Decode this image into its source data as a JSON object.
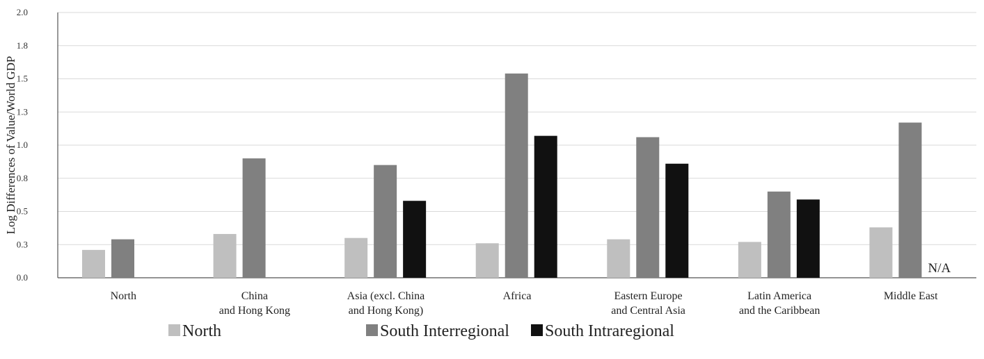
{
  "chart_data": {
    "type": "bar",
    "title": "",
    "xlabel": "",
    "ylabel": "Log Differences of Value/World GDP",
    "ylim": [
      0,
      1.8
    ],
    "yticks": [
      {
        "value": 0.0,
        "label": "0.0"
      },
      {
        "value": 0.25,
        "label": "0.3"
      },
      {
        "value": 0.5,
        "label": "0.5"
      },
      {
        "value": 0.75,
        "label": "0.8"
      },
      {
        "value": 1.0,
        "label": "1.0"
      },
      {
        "value": 1.25,
        "label": "1.3"
      },
      {
        "value": 1.5,
        "label": "1.5"
      },
      {
        "value": 1.75,
        "label": "1.8"
      },
      {
        "value": 2.0,
        "label": "2.0"
      }
    ],
    "grid": true,
    "legend_position": "bottom",
    "categories": [
      [
        "North"
      ],
      [
        "China",
        "and Hong Kong"
      ],
      [
        "Asia (excl. China",
        "and Hong Kong)"
      ],
      [
        "Africa"
      ],
      [
        "Eastern Europe",
        "and Central Asia"
      ],
      [
        "Latin America",
        "and the Caribbean"
      ],
      [
        "Middle East"
      ]
    ],
    "series": [
      {
        "name": "North",
        "color": "#bfbfbf",
        "values": [
          0.21,
          0.33,
          0.3,
          0.26,
          0.29,
          0.27,
          0.38
        ]
      },
      {
        "name": "South Interregional",
        "color": "#808080",
        "values": [
          0.29,
          0.9,
          0.85,
          1.54,
          1.06,
          0.65,
          1.17
        ]
      },
      {
        "name": "South Intraregional",
        "color": "#111111",
        "values": [
          null,
          null,
          0.58,
          1.07,
          0.86,
          0.59,
          null
        ]
      }
    ],
    "annotations": [
      {
        "category_index": 6,
        "series_index": 2,
        "text": "N/A"
      }
    ]
  }
}
